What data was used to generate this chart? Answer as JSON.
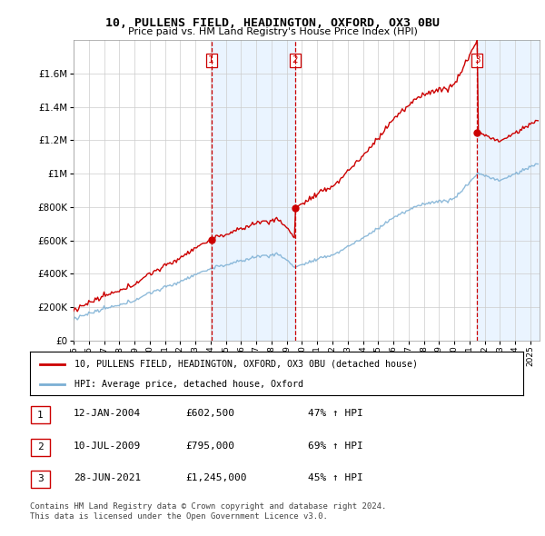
{
  "title1": "10, PULLENS FIELD, HEADINGTON, OXFORD, OX3 0BU",
  "title2": "Price paid vs. HM Land Registry's House Price Index (HPI)",
  "ylim": [
    0,
    1800000
  ],
  "yticks": [
    0,
    200000,
    400000,
    600000,
    800000,
    1000000,
    1200000,
    1400000,
    1600000
  ],
  "ytick_labels": [
    "£0",
    "£200K",
    "£400K",
    "£600K",
    "£800K",
    "£1M",
    "£1.2M",
    "£1.4M",
    "£1.6M"
  ],
  "grid_color": "#cccccc",
  "sale_color": "#cc0000",
  "hpi_color": "#7bafd4",
  "shade_color": "#ddeeff",
  "vline_color": "#cc0000",
  "purchase_labels": [
    "1",
    "2",
    "3"
  ],
  "sale_dates_float": [
    2004.042,
    2009.542,
    2021.5
  ],
  "sale_prices": [
    602500,
    795000,
    1245000
  ],
  "legend_sale_label": "10, PULLENS FIELD, HEADINGTON, OXFORD, OX3 0BU (detached house)",
  "legend_hpi_label": "HPI: Average price, detached house, Oxford",
  "table_entries": [
    {
      "num": "1",
      "date": "12-JAN-2004",
      "price": "£602,500",
      "change": "47% ↑ HPI"
    },
    {
      "num": "2",
      "date": "10-JUL-2009",
      "price": "£795,000",
      "change": "69% ↑ HPI"
    },
    {
      "num": "3",
      "date": "28-JUN-2021",
      "price": "£1,245,000",
      "change": "45% ↑ HPI"
    }
  ],
  "footnote1": "Contains HM Land Registry data © Crown copyright and database right 2024.",
  "footnote2": "This data is licensed under the Open Government Licence v3.0."
}
